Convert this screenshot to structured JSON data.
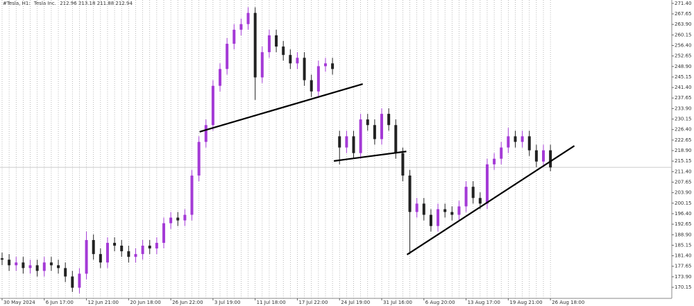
{
  "chart_data": {
    "type": "candlestick",
    "symbol": "#Tesla, H1:",
    "description": "Tesla Inc.",
    "ohlc": [
      212.96,
      213.18,
      211.88,
      212.94
    ],
    "categories": [
      "30 May 2024",
      null,
      null,
      null,
      null,
      null,
      "6 Jun 17:00",
      null,
      null,
      null,
      null,
      null,
      "12 Jun 21:00",
      null,
      null,
      null,
      null,
      null,
      "20 Jun 18:00",
      null,
      null,
      null,
      null,
      null,
      "26 Jun 22:00",
      null,
      null,
      null,
      null,
      null,
      "3 Jul 19:00",
      null,
      null,
      null,
      null,
      null,
      "11 Jul 18:00",
      null,
      null,
      null,
      null,
      null,
      "17 Jul 22:00",
      null,
      null,
      null,
      null,
      null,
      "24 Jul 19:00",
      null,
      null,
      null,
      null,
      null,
      "31 Jul 16:00",
      null,
      null,
      null,
      null,
      null,
      "6 Aug 20:00",
      null,
      null,
      null,
      null,
      null,
      "13 Aug 17:00",
      null,
      null,
      null,
      null,
      null,
      "19 Aug 21:00",
      null,
      null,
      null,
      null,
      null,
      "26 Aug 18:00"
    ],
    "open": [
      180.5,
      180,
      178,
      179,
      177,
      178,
      176,
      179,
      178,
      177,
      174,
      170,
      175,
      187,
      182,
      179,
      186,
      185,
      183,
      181,
      182,
      185,
      184,
      186,
      193,
      195,
      194,
      196,
      210,
      222,
      228,
      242,
      248,
      257,
      262,
      264,
      268,
      245,
      254,
      260,
      256,
      253,
      250,
      252,
      244,
      240,
      249,
      250,
      224,
      220,
      224,
      218,
      230,
      228,
      223,
      232,
      228,
      218,
      210,
      197,
      200,
      196,
      192,
      198,
      197,
      196,
      199,
      206,
      202,
      200,
      214,
      216,
      220,
      224,
      222,
      224,
      219,
      215,
      219
    ],
    "high": [
      182.5,
      182,
      181,
      181,
      180,
      180,
      181,
      181,
      180,
      179,
      176,
      177,
      190,
      189,
      184,
      188,
      188,
      187,
      185,
      184,
      187,
      187,
      188,
      195,
      197,
      197,
      198,
      212,
      224,
      230,
      244,
      250,
      259,
      264,
      266,
      270,
      270,
      256,
      262,
      262,
      258,
      255,
      254,
      254,
      246,
      251,
      252,
      252,
      226,
      226,
      226,
      232,
      232,
      230,
      234,
      234,
      230,
      220,
      212,
      202,
      202,
      198,
      200,
      200,
      199,
      201,
      208,
      208,
      204,
      216,
      218,
      222,
      227,
      226,
      226,
      226,
      221,
      221,
      221
    ],
    "low": [
      178,
      176,
      176,
      175,
      175,
      174,
      174,
      176,
      175,
      172,
      168.5,
      168,
      173,
      180,
      177,
      177,
      183,
      181,
      179,
      179,
      180,
      182,
      182,
      184,
      191,
      192,
      192,
      194,
      208,
      220,
      226,
      240,
      246,
      255,
      260,
      262,
      237,
      243,
      252,
      254,
      251,
      248,
      248,
      242,
      238,
      238,
      247,
      246,
      214,
      218,
      216,
      216,
      226,
      221,
      221,
      226,
      216,
      208,
      182,
      195,
      194,
      190,
      190,
      195,
      194,
      194,
      197,
      200,
      198,
      198,
      212,
      214,
      218,
      220,
      220,
      217,
      213,
      213,
      211.5
    ],
    "close": [
      180,
      178,
      179,
      177,
      178,
      176,
      179,
      178,
      177,
      174,
      170,
      175,
      187,
      182,
      179,
      186,
      185,
      183,
      181,
      182,
      185,
      184,
      186,
      193,
      195,
      194,
      196,
      210,
      222,
      228,
      242,
      248,
      257,
      262,
      264,
      268,
      245,
      254,
      260,
      256,
      253,
      250,
      252,
      244,
      240,
      249,
      250,
      248,
      220,
      224,
      218,
      230,
      228,
      223,
      232,
      228,
      218,
      210,
      197,
      200,
      196,
      192,
      198,
      197,
      196,
      199,
      206,
      202,
      200,
      214,
      216,
      220,
      224,
      222,
      224,
      219,
      215,
      219,
      212.9
    ],
    "up_color": "#a43ad6",
    "down_color": "#222222",
    "ylim": [
      166.2,
      272.6
    ],
    "yticks": [
      {
        "value": 271.4,
        "label": "271.40"
      },
      267.65,
      {
        "value": 263.9,
        "label": "263.90"
      },
      260.15,
      {
        "value": 256.4,
        "label": "256.40"
      },
      252.65,
      {
        "value": 248.9,
        "label": "248.90"
      },
      245.15,
      {
        "value": 241.4,
        "label": "241.40"
      },
      237.65,
      {
        "value": 233.9,
        "label": "233.90"
      },
      230.15,
      {
        "value": 226.4,
        "label": "226.40"
      },
      222.65,
      {
        "value": 218.9,
        "label": "218.90"
      },
      215.15,
      {
        "value": 211.4,
        "label": "211.40"
      },
      207.65,
      {
        "value": 203.9,
        "label": "203.90"
      },
      200.15,
      {
        "value": 196.4,
        "label": "196.40"
      },
      192.65,
      {
        "value": 188.9,
        "label": "188.90"
      },
      185.15,
      {
        "value": 181.4,
        "label": "181.40"
      },
      177.65,
      {
        "value": 173.9,
        "label": "173.90"
      },
      170.15
    ],
    "grid": true,
    "trendlines": [
      {
        "x": [
          28.1,
          51.3
        ],
        "y": [
          225.6,
          242.65
        ],
        "color": "#000000"
      },
      {
        "x": [
          47.2,
          57.5
        ],
        "y": [
          215.2,
          218.6
        ],
        "color": "#000000"
      },
      {
        "x": [
          57.6,
          81.4
        ],
        "y": [
          181.8,
          220.6
        ],
        "color": "#000000"
      }
    ]
  }
}
